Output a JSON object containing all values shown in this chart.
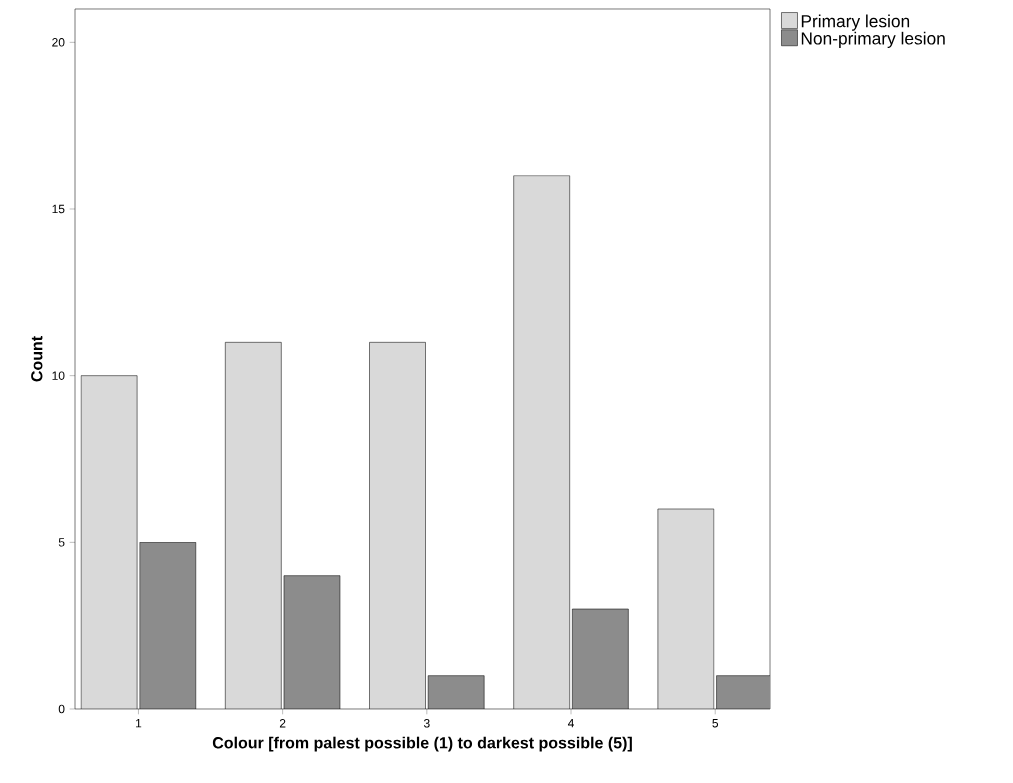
{
  "chart_data": {
    "type": "bar",
    "xlabel": "Colour [from palest possible (1) to darkest possible (5)]",
    "ylabel": "Count",
    "categories": [
      "1",
      "2",
      "3",
      "4",
      "5"
    ],
    "series": [
      {
        "name": "Primary lesion",
        "color": "#d9d9d9",
        "values": [
          10,
          11,
          11,
          16,
          6
        ]
      },
      {
        "name": "Non-primary lesion",
        "color": "#8c8c8c",
        "values": [
          5,
          4,
          1,
          3,
          1
        ]
      }
    ],
    "ylim": [
      0,
      21
    ],
    "yticks": [
      0,
      5,
      10,
      15,
      20
    ],
    "grid": false,
    "legend": "top right"
  }
}
